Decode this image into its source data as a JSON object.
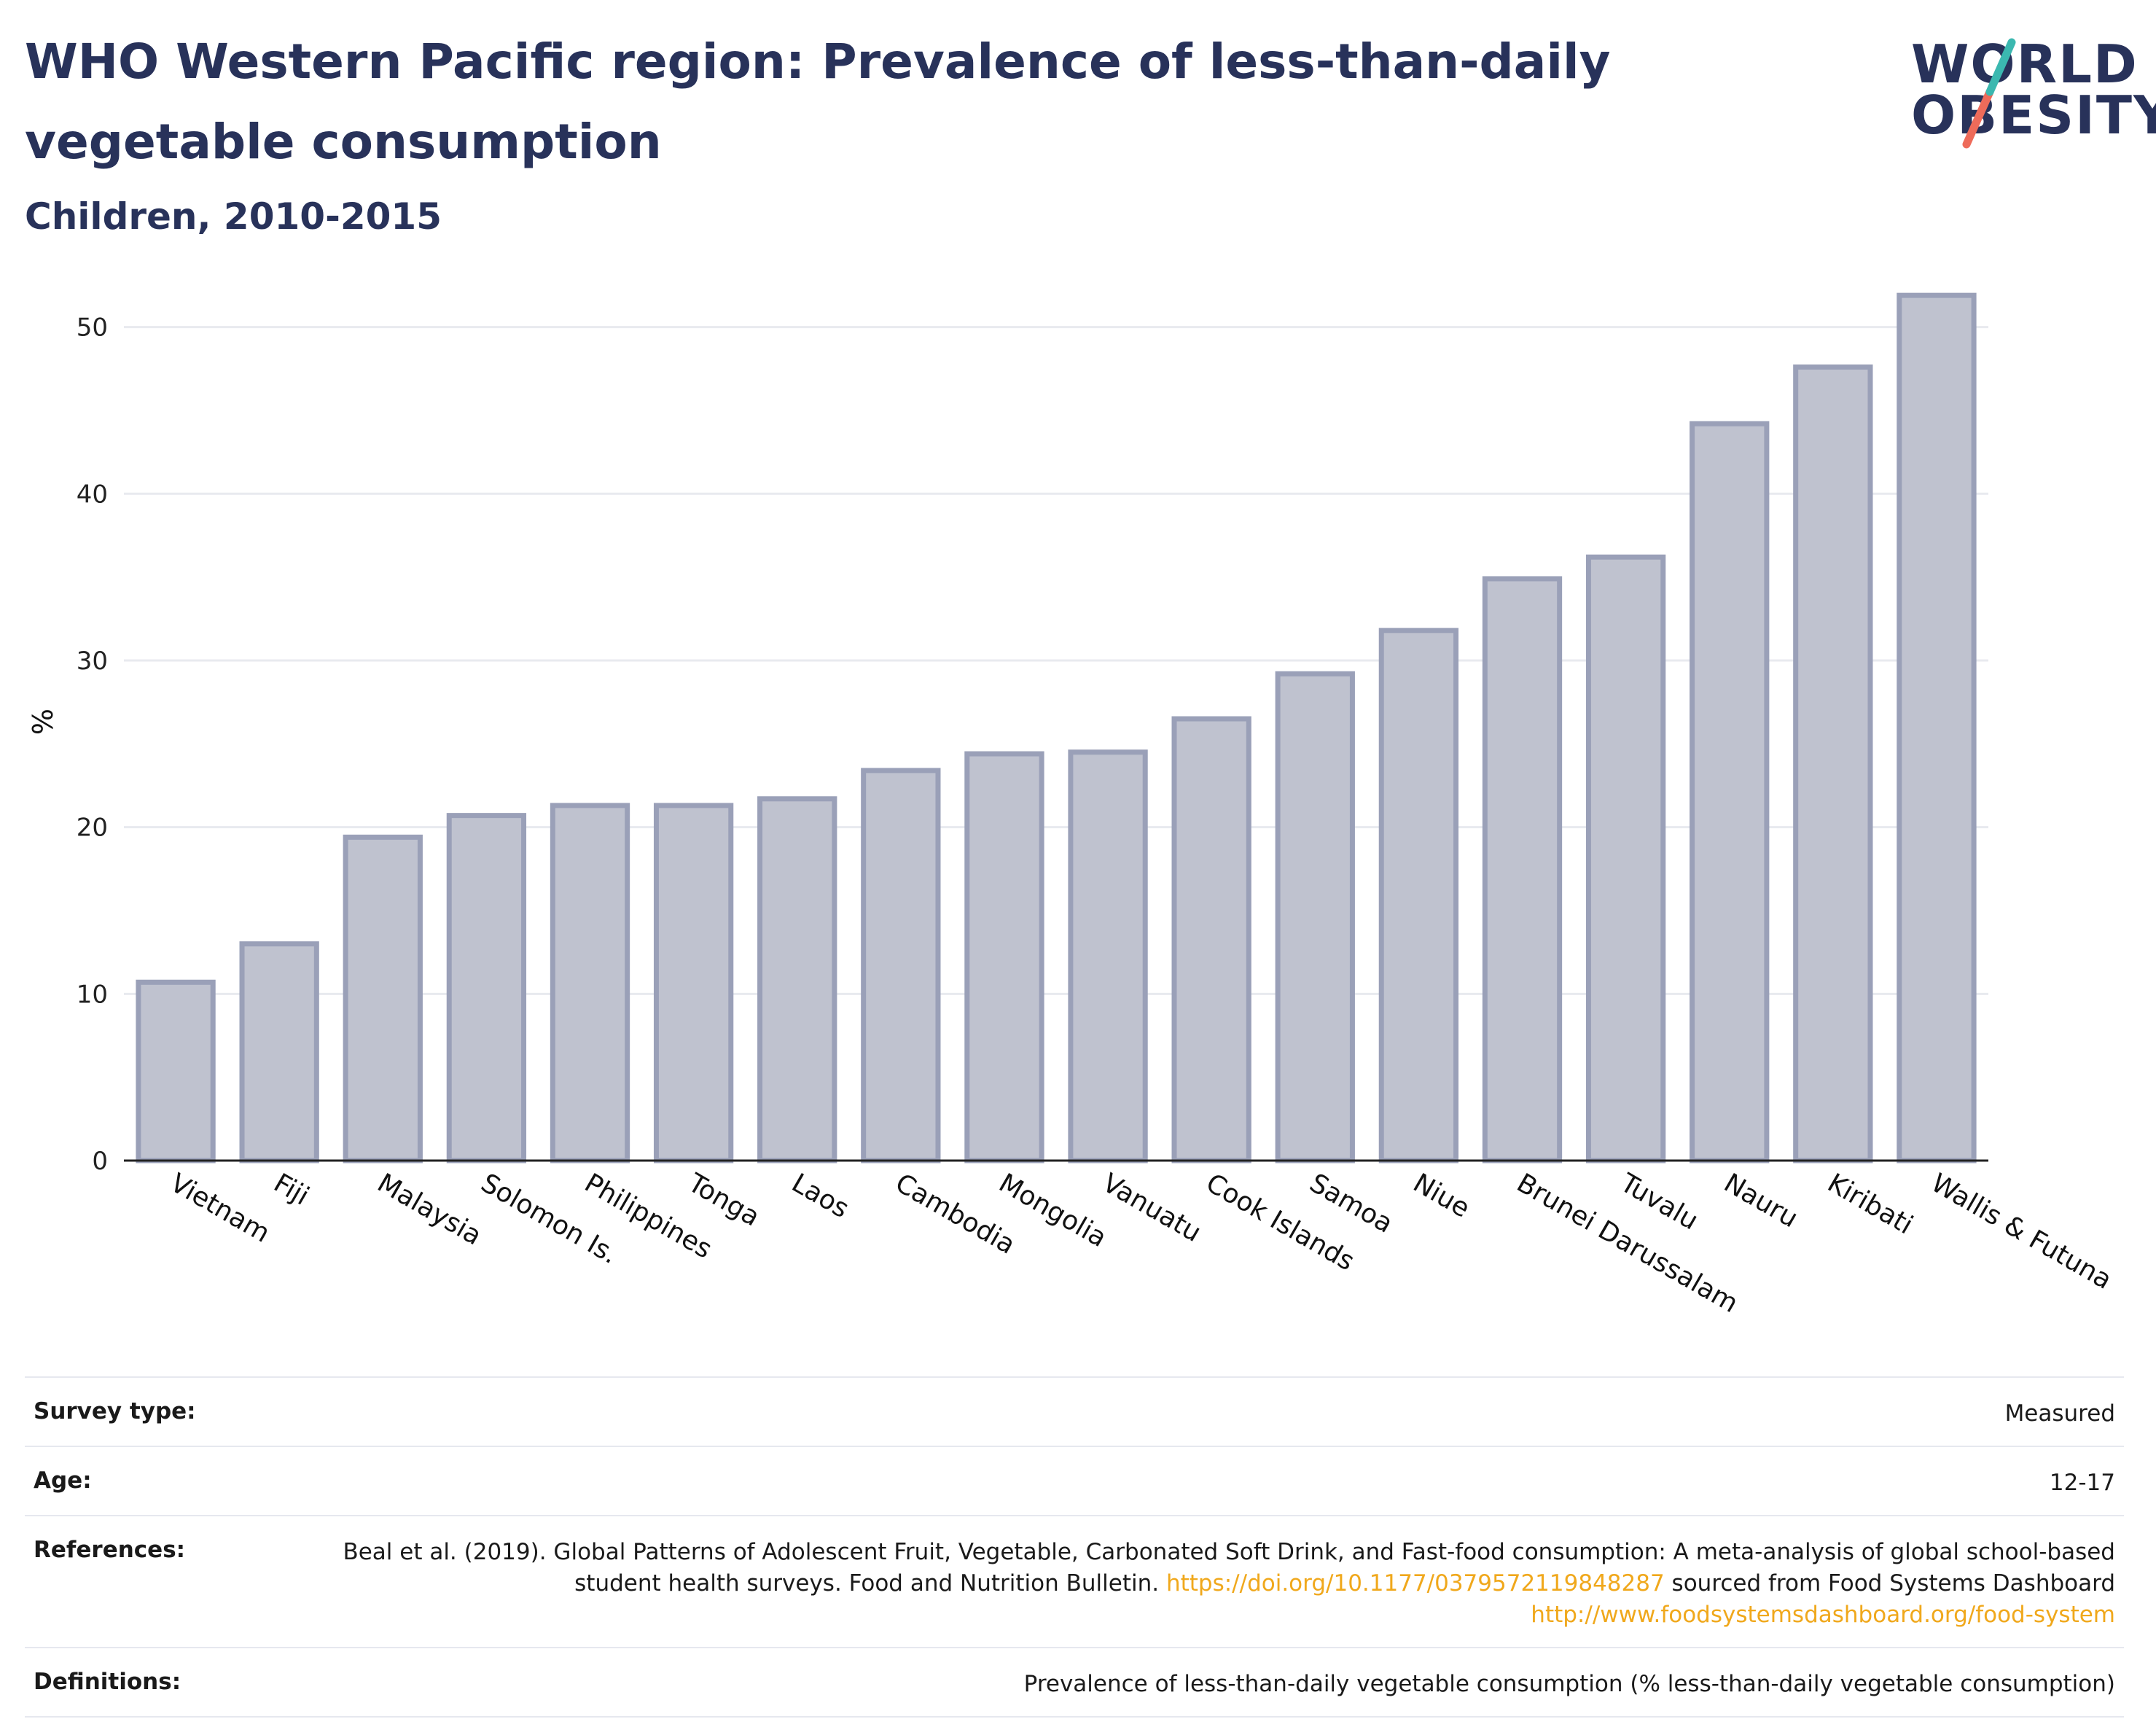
{
  "title": "WHO Western Pacific region: Prevalence of less-than-daily vegetable consumption",
  "subtitle": "Children, 2010-2015",
  "logo": {
    "line1": "WORLD",
    "line2": "OBESITY"
  },
  "colors": {
    "title": "#28325a",
    "bar_fill": "#bfc2cf",
    "bar_stroke": "#9aa0b8",
    "grid": "#e8eaef",
    "link": "#f0a81c",
    "logo_teal": "#3bb8b0",
    "logo_coral": "#ee6b5a"
  },
  "chart_data": {
    "type": "bar",
    "ylabel": "%",
    "xlabel": "",
    "ylim": [
      0,
      53
    ],
    "yticks": [
      0,
      10,
      20,
      30,
      40,
      50
    ],
    "grid": true,
    "categories": [
      "Vietnam",
      "Fiji",
      "Malaysia",
      "Solomon Is.",
      "Philippines",
      "Tonga",
      "Laos",
      "Cambodia",
      "Mongolia",
      "Vanuatu",
      "Cook Islands",
      "Samoa",
      "Niue",
      "Brunei Darussalam",
      "Tuvalu",
      "Nauru",
      "Kiribati",
      "Wallis & Futuna"
    ],
    "values": [
      10.7,
      13.0,
      19.4,
      20.7,
      21.3,
      21.3,
      21.7,
      23.4,
      24.4,
      24.5,
      26.5,
      29.2,
      31.8,
      34.9,
      36.2,
      44.2,
      47.6,
      51.9
    ]
  },
  "meta": {
    "survey_type_label": "Survey type:",
    "survey_type_value": "Measured",
    "age_label": "Age:",
    "age_value": "12-17",
    "references_label": "References:",
    "references_text_1": "Beal et al. (2019). Global Patterns of Adolescent Fruit, Vegetable, Carbonated Soft Drink, and Fast-food consumption: A meta-analysis of global school-based student health surveys. Food and Nutrition Bulletin. ",
    "references_link_1": "https://doi.org/10.1177/0379572119848287",
    "references_text_2": " sourced from Food Systems Dashboard ",
    "references_link_2": "http://www.foodsystemsdashboard.org/food-system",
    "definitions_label": "Definitions:",
    "definitions_value": "Prevalence of less-than-daily vegetable consumption (% less-than-daily vegetable consumption)"
  }
}
